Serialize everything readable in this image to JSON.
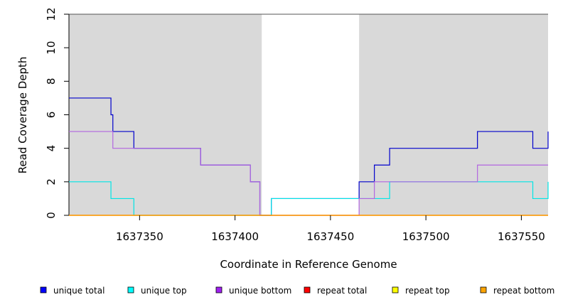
{
  "chart_data": {
    "type": "line",
    "step": true,
    "xlabel": "Coordinate in Reference Genome",
    "ylabel": "Read Coverage Depth",
    "xlim": [
      1637313,
      1637564
    ],
    "ylim": [
      0,
      12
    ],
    "x_ticks": [
      1637350,
      1637400,
      1637450,
      1637500,
      1637550
    ],
    "x_tick_labels": [
      "1637350",
      "1637400",
      "1637450",
      "1637500",
      "1637550"
    ],
    "y_ticks": [
      0,
      2,
      4,
      6,
      8,
      10,
      12
    ],
    "y_tick_labels": [
      "0",
      "2",
      "4",
      "6",
      "8",
      "10",
      "12"
    ],
    "shaded_regions": [
      {
        "x0": 1637313,
        "x1": 1637414,
        "color": "#d9d9d9"
      },
      {
        "x0": 1637465,
        "x1": 1637564,
        "color": "#d9d9d9"
      }
    ],
    "legend_position": "bottom",
    "series": [
      {
        "name": "unique total",
        "color": "#0000cc",
        "points": [
          [
            1637313,
            7
          ],
          [
            1637335,
            7
          ],
          [
            1637335,
            6
          ],
          [
            1637336,
            6
          ],
          [
            1637336,
            5
          ],
          [
            1637347,
            5
          ],
          [
            1637347,
            4
          ],
          [
            1637382,
            4
          ],
          [
            1637382,
            3
          ],
          [
            1637408,
            3
          ],
          [
            1637408,
            2
          ],
          [
            1637413,
            2
          ],
          [
            1637413,
            0
          ],
          [
            1637419,
            0
          ],
          [
            1637419,
            1
          ],
          [
            1637465,
            1
          ],
          [
            1637465,
            2
          ],
          [
            1637473,
            2
          ],
          [
            1637473,
            3
          ],
          [
            1637481,
            3
          ],
          [
            1637481,
            4
          ],
          [
            1637527,
            4
          ],
          [
            1637527,
            5
          ],
          [
            1637556,
            5
          ],
          [
            1637556,
            4
          ],
          [
            1637564,
            4
          ],
          [
            1637564,
            5
          ]
        ]
      },
      {
        "name": "unique top",
        "color": "#00e5e5",
        "points": [
          [
            1637313,
            2
          ],
          [
            1637335,
            2
          ],
          [
            1637335,
            1
          ],
          [
            1637347,
            1
          ],
          [
            1637347,
            0
          ],
          [
            1637419,
            0
          ],
          [
            1637419,
            1
          ],
          [
            1637473,
            1
          ],
          [
            1637473,
            1
          ],
          [
            1637481,
            1
          ],
          [
            1637481,
            2
          ],
          [
            1637556,
            2
          ],
          [
            1637556,
            1
          ],
          [
            1637564,
            1
          ],
          [
            1637564,
            2
          ]
        ]
      },
      {
        "name": "unique bottom",
        "color": "#b266e0",
        "points": [
          [
            1637313,
            5
          ],
          [
            1637336,
            5
          ],
          [
            1637336,
            4
          ],
          [
            1637382,
            4
          ],
          [
            1637382,
            3
          ],
          [
            1637408,
            3
          ],
          [
            1637408,
            2
          ],
          [
            1637413,
            2
          ],
          [
            1637413,
            0
          ],
          [
            1637465,
            0
          ],
          [
            1637465,
            1
          ],
          [
            1637473,
            1
          ],
          [
            1637473,
            2
          ],
          [
            1637527,
            2
          ],
          [
            1637527,
            3
          ],
          [
            1637564,
            3
          ]
        ]
      },
      {
        "name": "repeat total",
        "color": "#e00000",
        "points": [
          [
            1637313,
            0
          ],
          [
            1637564,
            0
          ]
        ]
      },
      {
        "name": "repeat top",
        "color": "#ffff00",
        "points": [
          [
            1637313,
            0
          ],
          [
            1637564,
            0
          ]
        ]
      },
      {
        "name": "repeat bottom",
        "color": "#ff9900",
        "points": [
          [
            1637313,
            0
          ],
          [
            1637564,
            0
          ]
        ]
      }
    ],
    "legend": [
      {
        "label": "unique total",
        "color": "#0000ff"
      },
      {
        "label": "unique top",
        "color": "#00ffff"
      },
      {
        "label": "unique bottom",
        "color": "#a020f0"
      },
      {
        "label": "repeat total",
        "color": "#ff0000"
      },
      {
        "label": "repeat top",
        "color": "#ffff00"
      },
      {
        "label": "repeat bottom",
        "color": "#ffa500"
      }
    ]
  }
}
